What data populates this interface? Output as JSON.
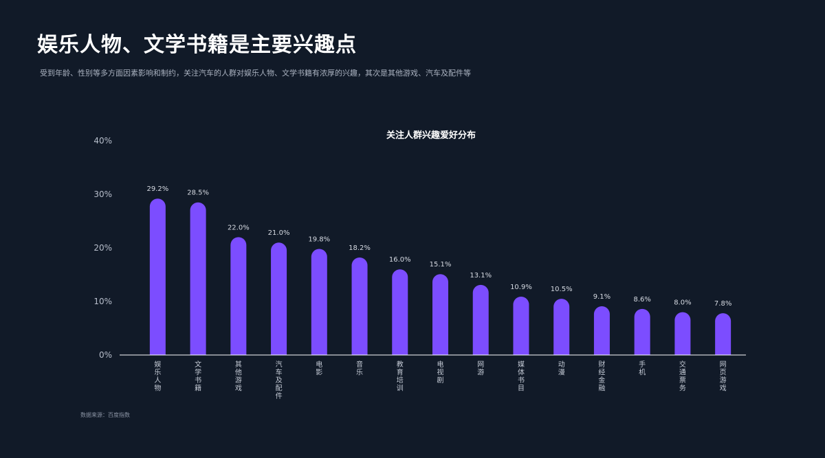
{
  "page": {
    "title": "娱乐人物、文学书籍是主要兴趣点",
    "subtitle": "受到年龄、性别等多方面因素影响和制约，关注汽车的人群对娱乐人物、文学书籍有浓厚的兴趣，其次是其他游戏、汽车及配件等",
    "source": "数据来源：百度指数"
  },
  "colors": {
    "background": "#111a28",
    "bar": "#7c4dff",
    "axis": "#ffffff"
  },
  "chart_data": {
    "type": "bar",
    "title": "关注人群兴趣爱好分布",
    "xlabel": "",
    "ylabel": "",
    "ylim": [
      0,
      40
    ],
    "yticks": [
      "0%",
      "10%",
      "20%",
      "30%",
      "40%"
    ],
    "grid": false,
    "categories": [
      "娱乐人物",
      "文学书籍",
      "其他游戏",
      "汽车及配件",
      "电影",
      "音乐",
      "教育培训",
      "电视剧",
      "网游",
      "媒体书目",
      "动漫",
      "财经金融",
      "手机",
      "交通票务",
      "网页游戏"
    ],
    "values": [
      29.2,
      28.5,
      22.0,
      21.0,
      19.8,
      18.2,
      16.0,
      15.1,
      13.1,
      10.9,
      10.5,
      9.1,
      8.6,
      8.0,
      7.8
    ],
    "labels": [
      "29.2%",
      "28.5%",
      "22.0%",
      "21.0%",
      "19.8%",
      "18.2%",
      "16.0%",
      "15.1%",
      "13.1%",
      "10.9%",
      "10.5%",
      "9.1%",
      "8.6%",
      "8.0%",
      "7.8%"
    ]
  }
}
